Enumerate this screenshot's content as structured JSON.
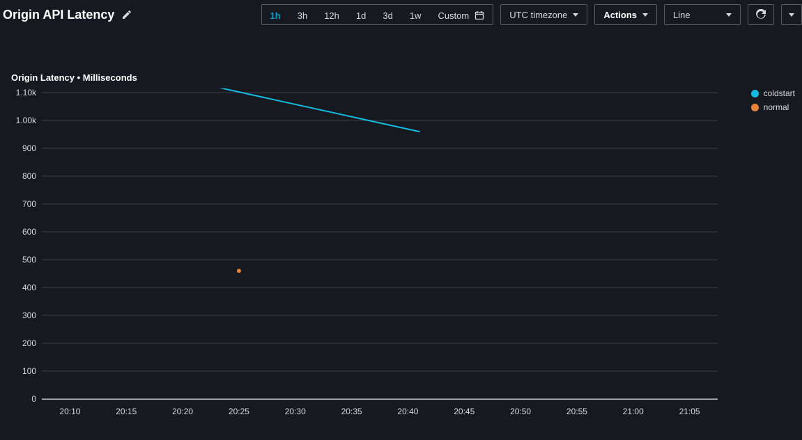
{
  "header": {
    "title": "Origin API Latency",
    "time_ranges": [
      "1h",
      "3h",
      "12h",
      "1d",
      "3d",
      "1w"
    ],
    "active_range": "1h",
    "custom_label": "Custom",
    "timezone_label": "UTC timezone",
    "actions_label": "Actions",
    "chart_type_label": "Line"
  },
  "chart": {
    "title": "Origin Latency • Milliseconds",
    "type": "line",
    "background_color": "#16191f",
    "grid_color": "#3a3f47",
    "axis_color": "#c6cdd3",
    "text_color": "#d5dbdb",
    "line_width": 2,
    "marker_radius": 3,
    "x": {
      "ticks": [
        "20:10",
        "20:15",
        "20:20",
        "20:25",
        "20:30",
        "20:35",
        "20:40",
        "20:45",
        "20:50",
        "20:55",
        "21:00",
        "21:05"
      ],
      "min_minutes": 1207.5,
      "max_minutes": 1267.5
    },
    "y": {
      "min": 0,
      "max": 1100,
      "ticks": [
        0,
        100,
        200,
        300,
        400,
        500,
        600,
        700,
        800,
        900,
        1000,
        1100
      ],
      "tick_labels": [
        "0",
        "100",
        "200",
        "300",
        "400",
        "500",
        "600",
        "700",
        "800",
        "900",
        "1.00k",
        "1.10k"
      ]
    },
    "series": [
      {
        "name": "coldstart",
        "color": "#16b9e0",
        "points": [
          {
            "x_min": 1223,
            "y": 1120
          },
          {
            "x_min": 1241,
            "y": 960
          }
        ],
        "draw_line": true
      },
      {
        "name": "normal",
        "color": "#e8833a",
        "points": [
          {
            "x_min": 1225,
            "y": 460
          }
        ],
        "draw_line": false
      }
    ],
    "legend": [
      {
        "label": "coldstart",
        "color": "#16b9e0"
      },
      {
        "label": "normal",
        "color": "#e8833a"
      }
    ]
  }
}
